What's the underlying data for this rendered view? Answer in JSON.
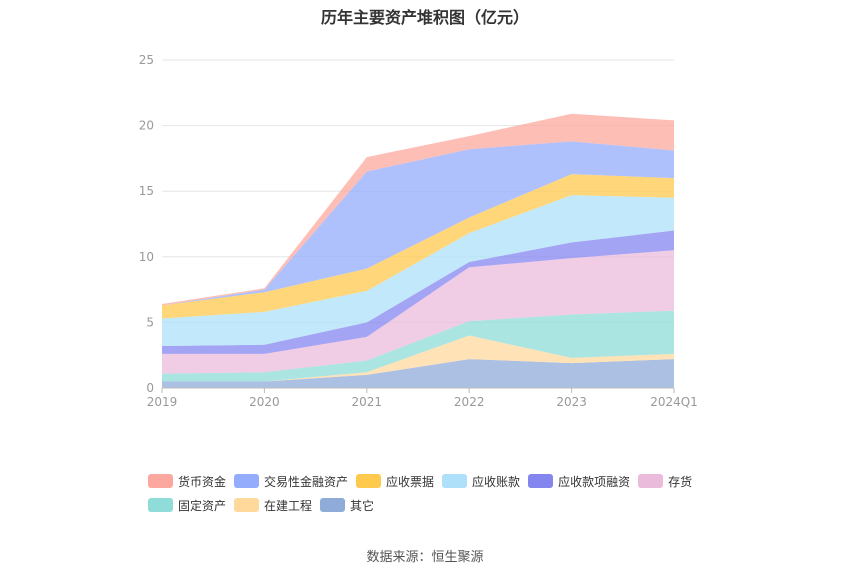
{
  "title": "历年主要资产堆积图（亿元）",
  "source": "数据来源：恒生聚源",
  "chart_data": {
    "type": "area",
    "stacked": true,
    "categories": [
      "2019",
      "2020",
      "2021",
      "2022",
      "2023",
      "2024Q1"
    ],
    "ylim": [
      0,
      25
    ],
    "yticks": [
      0,
      5,
      10,
      15,
      20,
      25
    ],
    "grid": true,
    "legend_position": "bottom",
    "series": [
      {
        "name": "其它",
        "color": "#8fabd8",
        "values": [
          0.5,
          0.5,
          1.0,
          2.2,
          1.9,
          2.2
        ]
      },
      {
        "name": "在建工程",
        "color": "#ffd89c",
        "values": [
          0.0,
          0.0,
          0.2,
          1.8,
          0.4,
          0.4
        ]
      },
      {
        "name": "固定资产",
        "color": "#8fdcd8",
        "values": [
          0.6,
          0.7,
          0.9,
          1.1,
          3.3,
          3.3
        ]
      },
      {
        "name": "存货",
        "color": "#ebbbdc",
        "values": [
          1.5,
          1.4,
          1.8,
          4.1,
          4.3,
          4.6
        ]
      },
      {
        "name": "应收款项融资",
        "color": "#8585f0",
        "values": [
          0.6,
          0.7,
          1.1,
          0.4,
          1.2,
          1.5
        ]
      },
      {
        "name": "应收账款",
        "color": "#aee0fa",
        "values": [
          2.1,
          2.5,
          2.4,
          2.2,
          3.6,
          2.5
        ]
      },
      {
        "name": "应收票据",
        "color": "#ffc94d",
        "values": [
          1.0,
          1.5,
          1.7,
          1.2,
          1.6,
          1.5
        ]
      },
      {
        "name": "交易性金融资产",
        "color": "#94acfc",
        "values": [
          0.0,
          0.2,
          7.4,
          5.2,
          2.5,
          2.1
        ]
      },
      {
        "name": "货币资金",
        "color": "#fca89e",
        "values": [
          0.1,
          0.1,
          1.1,
          1.0,
          2.1,
          2.3
        ]
      }
    ]
  },
  "legend_order": [
    "货币资金",
    "交易性金融资产",
    "应收票据",
    "应收账款",
    "应收款项融资",
    "存货",
    "固定资产",
    "在建工程",
    "其它"
  ]
}
